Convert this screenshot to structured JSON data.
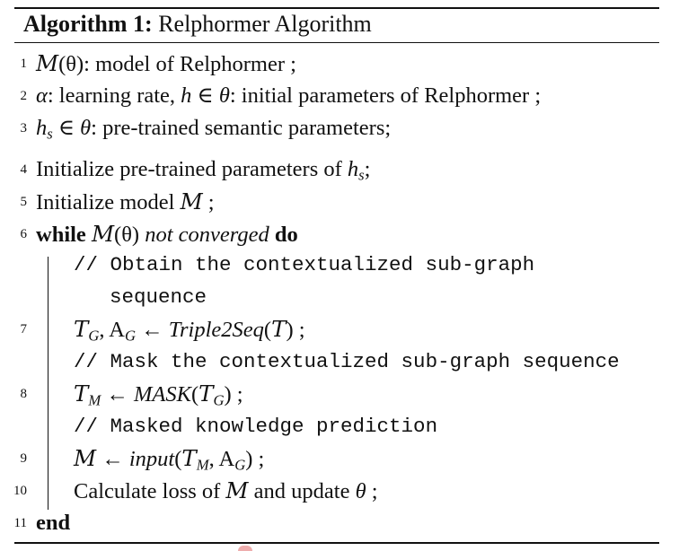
{
  "caption": {
    "label": "Algorithm 1:",
    "title": "Relphormer Algorithm"
  },
  "lines": [
    {
      "num": "1",
      "model_sym": "M",
      "a": "(θ): model of Relphormer ;"
    },
    {
      "num": "2",
      "alpha": "α",
      "a": ": learning rate, ",
      "h": "h",
      "b": " ∈ ",
      "theta": "θ",
      "c": ": initial parameters of Relphormer ;"
    },
    {
      "num": "3",
      "h": "h",
      "s": "s",
      "b": " ∈ ",
      "theta": "θ",
      "c": ": pre-trained semantic parameters;"
    },
    {
      "num": "4",
      "a": "Initialize pre-trained parameters of ",
      "h": "h",
      "s": "s",
      "c": ";"
    },
    {
      "num": "5",
      "a": "Initialize model ",
      "model_sym": "M",
      "c": " ;"
    },
    {
      "num": "6",
      "kw_while": "while",
      "model_sym": "M",
      "a": "(θ) ",
      "cond": "not converged",
      "kw_do": "do"
    },
    {
      "comment": "// Obtain the contextualized sub-graph",
      "comment_cont": "sequence"
    },
    {
      "num": "7",
      "T": "T",
      "G": "G",
      "a": ", A",
      "G2": "G",
      "arrow": " ← ",
      "func": "Triple2Seq",
      "p1": "(",
      "T2": "T",
      "p2": ") ;"
    },
    {
      "comment": "// Mask the contextualized sub-graph sequence"
    },
    {
      "num": "8",
      "T": "T",
      "M": "M",
      "arrow": " ← ",
      "func": "MASK",
      "p1": "(",
      "T2": "T",
      "G": "G",
      "p2": ") ;"
    },
    {
      "comment": "// Masked knowledge prediction"
    },
    {
      "num": "9",
      "model_sym": "M",
      "arrow": " ← ",
      "func": "input",
      "p1": "(",
      "T": "T",
      "M": "M",
      "a": ", A",
      "G": "G",
      "p2": ") ;"
    },
    {
      "num": "10",
      "a": "Calculate loss of ",
      "model_sym": "M",
      "b": " and update ",
      "theta": "θ",
      "c": " ;"
    },
    {
      "num": "11",
      "kw_end": "end"
    }
  ]
}
